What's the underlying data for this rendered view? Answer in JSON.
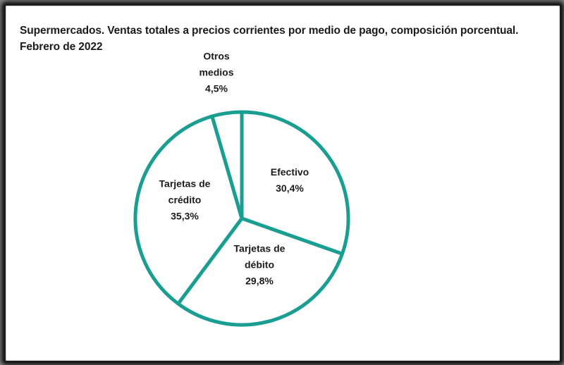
{
  "chart_data": {
    "type": "pie",
    "title": "Supermercados. Ventas totales a precios corrientes por medio de pago, composición porcentual.",
    "subtitle": "Febrero de 2022",
    "slices": [
      {
        "label_lines": [
          "Efectivo"
        ],
        "value": 30.4,
        "value_label": "30,4%"
      },
      {
        "label_lines": [
          "Tarjetas de",
          "débito"
        ],
        "value": 29.8,
        "value_label": "29,8%"
      },
      {
        "label_lines": [
          "Tarjetas de",
          "crédito"
        ],
        "value": 35.3,
        "value_label": "35,3%"
      },
      {
        "label_lines": [
          "Otros",
          "medios"
        ],
        "value": 4.5,
        "value_label": "4,5%"
      }
    ],
    "colors": {
      "outline": "#1a9e91",
      "fill": "#ffffff",
      "text": "#1b1b1b"
    }
  }
}
